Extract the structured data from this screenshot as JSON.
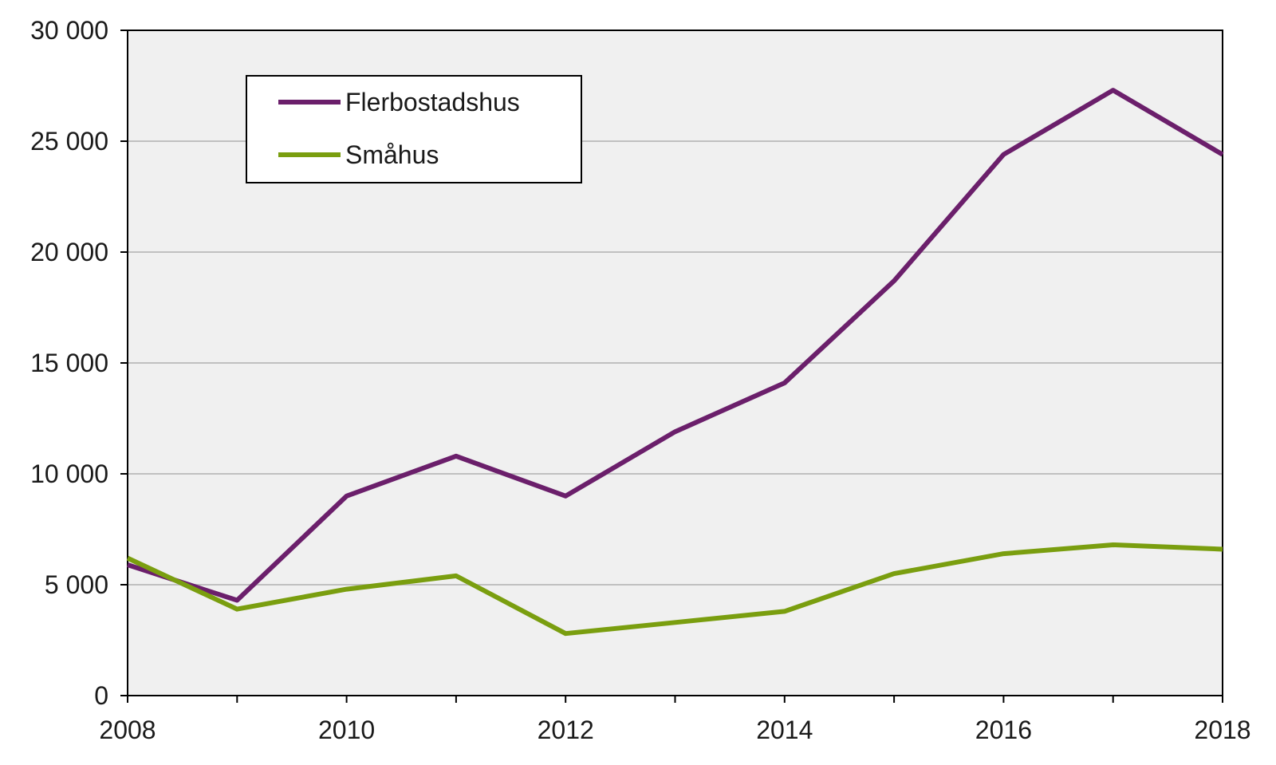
{
  "chart_data": {
    "type": "line",
    "x": [
      2008,
      2009,
      2010,
      2011,
      2012,
      2013,
      2014,
      2015,
      2016,
      2017,
      2018
    ],
    "x_tick_labels": [
      "2008",
      "2010",
      "2012",
      "2014",
      "2016",
      "2018"
    ],
    "x_tick_values": [
      2008,
      2010,
      2012,
      2014,
      2016,
      2018
    ],
    "xlim": [
      2008,
      2018
    ],
    "y_tick_labels": [
      "0",
      "5 000",
      "10 000",
      "15 000",
      "20 000",
      "25 000",
      "30 000"
    ],
    "y_tick_values": [
      0,
      5000,
      10000,
      15000,
      20000,
      25000,
      30000
    ],
    "ylim": [
      0,
      30000
    ],
    "grid": "horizontal",
    "legend_position": "top-left",
    "series": [
      {
        "name": "Flerbostadshus",
        "color": "#6b1f6b",
        "values": [
          5900,
          4300,
          9000,
          10800,
          9000,
          11900,
          14100,
          18700,
          24400,
          27300,
          24400
        ]
      },
      {
        "name": "Småhus",
        "color": "#7a9e0f",
        "values": [
          6200,
          3900,
          4800,
          5400,
          2800,
          3300,
          3800,
          5500,
          6400,
          6800,
          6600
        ]
      }
    ],
    "plot_background": "#f0f0f0",
    "gridline_color": "#c0c0c0"
  }
}
